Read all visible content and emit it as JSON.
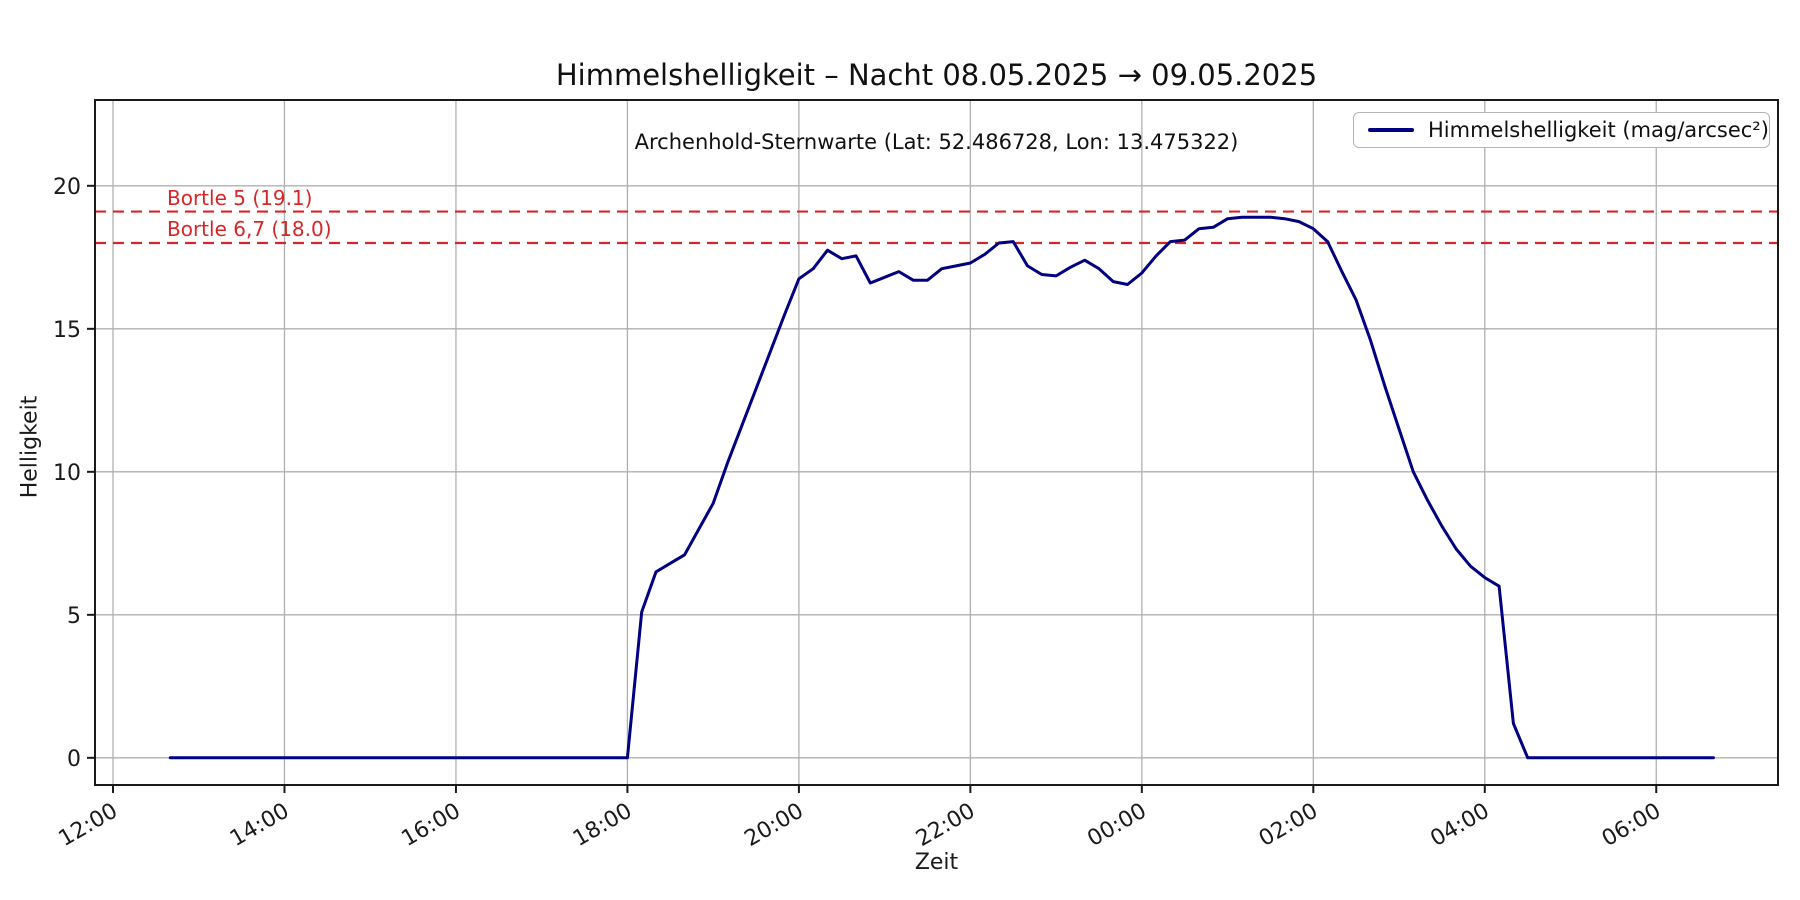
{
  "chart_data": {
    "type": "line",
    "title": "Himmelshelligkeit – Nacht 08.05.2025 → 09.05.2025",
    "subtitle": "Archenhold-Sternwarte (Lat: 52.486728, Lon: 13.475322)",
    "xlabel": "Zeit",
    "ylabel": "Helligkeit",
    "grid": true,
    "legend": {
      "label": "Himmelshelligkeit (mag/arcsec²)",
      "position": "upper right"
    },
    "colors": {
      "line": "#000080",
      "reference": "#d62728",
      "grid": "#b0b0b0",
      "spine": "#1a1a1a",
      "background": "#ffffff",
      "text": "#1a1a1a"
    },
    "y_ticks": [
      0,
      5,
      10,
      15,
      20
    ],
    "ylim": [
      -0.95,
      23.0
    ],
    "x_tick_labels": [
      "12:00",
      "14:00",
      "16:00",
      "18:00",
      "20:00",
      "22:00",
      "00:00",
      "02:00",
      "04:00",
      "06:00"
    ],
    "x_axis_hours_from_noon": {
      "ticks": [
        0,
        2,
        4,
        6,
        8,
        10,
        12,
        14,
        16,
        18
      ],
      "lim": [
        -0.21,
        19.42
      ]
    },
    "reference_lines": [
      {
        "label": "Bortle 5 (19.1)",
        "value": 19.1,
        "color": "#d62728",
        "style": "dashed"
      },
      {
        "label": "Bortle 6,7 (18.0)",
        "value": 18.0,
        "color": "#d62728",
        "style": "dashed"
      }
    ],
    "series": [
      {
        "name": "Himmelshelligkeit (mag/arcsec²)",
        "color": "#000080",
        "points": [
          [
            "12:40",
            0
          ],
          [
            "12:50",
            0
          ],
          [
            "13:00",
            0
          ],
          [
            "13:10",
            0
          ],
          [
            "13:20",
            0
          ],
          [
            "13:30",
            0
          ],
          [
            "13:40",
            0
          ],
          [
            "13:50",
            0
          ],
          [
            "14:00",
            0
          ],
          [
            "14:10",
            0
          ],
          [
            "14:20",
            0
          ],
          [
            "14:30",
            0
          ],
          [
            "14:40",
            0
          ],
          [
            "14:50",
            0
          ],
          [
            "15:00",
            0
          ],
          [
            "15:10",
            0
          ],
          [
            "15:20",
            0
          ],
          [
            "15:30",
            0
          ],
          [
            "15:40",
            0
          ],
          [
            "15:50",
            0
          ],
          [
            "16:00",
            0
          ],
          [
            "16:10",
            0
          ],
          [
            "16:20",
            0
          ],
          [
            "16:30",
            0
          ],
          [
            "16:40",
            0
          ],
          [
            "16:50",
            0
          ],
          [
            "17:00",
            0
          ],
          [
            "17:10",
            0
          ],
          [
            "17:20",
            0
          ],
          [
            "17:30",
            0
          ],
          [
            "17:40",
            0
          ],
          [
            "17:50",
            0
          ],
          [
            "18:00",
            0
          ],
          [
            "18:10",
            5.1
          ],
          [
            "18:20",
            6.5
          ],
          [
            "18:30",
            6.8
          ],
          [
            "18:40",
            7.1
          ],
          [
            "18:50",
            8.0
          ],
          [
            "19:00",
            8.9
          ],
          [
            "19:10",
            10.3
          ],
          [
            "19:20",
            11.6
          ],
          [
            "19:30",
            12.9
          ],
          [
            "19:40",
            14.2
          ],
          [
            "19:50",
            15.5
          ],
          [
            "20:00",
            16.75
          ],
          [
            "20:10",
            17.1
          ],
          [
            "20:20",
            17.75
          ],
          [
            "20:30",
            17.45
          ],
          [
            "20:40",
            17.55
          ],
          [
            "20:50",
            16.6
          ],
          [
            "21:00",
            16.8
          ],
          [
            "21:10",
            17.0
          ],
          [
            "21:20",
            16.7
          ],
          [
            "21:30",
            16.7
          ],
          [
            "21:40",
            17.1
          ],
          [
            "21:50",
            17.2
          ],
          [
            "22:00",
            17.3
          ],
          [
            "22:10",
            17.6
          ],
          [
            "22:20",
            18.0
          ],
          [
            "22:30",
            18.05
          ],
          [
            "22:40",
            17.2
          ],
          [
            "22:50",
            16.9
          ],
          [
            "23:00",
            16.85
          ],
          [
            "23:10",
            17.15
          ],
          [
            "23:20",
            17.4
          ],
          [
            "23:30",
            17.1
          ],
          [
            "23:40",
            16.65
          ],
          [
            "23:50",
            16.55
          ],
          [
            "00:00",
            16.95
          ],
          [
            "00:10",
            17.55
          ],
          [
            "00:20",
            18.05
          ],
          [
            "00:30",
            18.1
          ],
          [
            "00:40",
            18.5
          ],
          [
            "00:50",
            18.55
          ],
          [
            "01:00",
            18.85
          ],
          [
            "01:10",
            18.9
          ],
          [
            "01:20",
            18.9
          ],
          [
            "01:30",
            18.9
          ],
          [
            "01:40",
            18.85
          ],
          [
            "01:50",
            18.75
          ],
          [
            "02:00",
            18.5
          ],
          [
            "02:10",
            18.05
          ],
          [
            "02:20",
            17.0
          ],
          [
            "02:30",
            16.0
          ],
          [
            "02:40",
            14.6
          ],
          [
            "02:50",
            13.0
          ],
          [
            "03:00",
            11.5
          ],
          [
            "03:10",
            10.0
          ],
          [
            "03:20",
            9.0
          ],
          [
            "03:30",
            8.1
          ],
          [
            "03:40",
            7.3
          ],
          [
            "03:50",
            6.7
          ],
          [
            "04:00",
            6.3
          ],
          [
            "04:10",
            6.0
          ],
          [
            "04:20",
            1.2
          ],
          [
            "04:30",
            0
          ],
          [
            "04:40",
            0
          ],
          [
            "04:50",
            0
          ],
          [
            "05:00",
            0
          ],
          [
            "05:10",
            0
          ],
          [
            "05:20",
            0
          ],
          [
            "05:30",
            0
          ],
          [
            "05:40",
            0
          ],
          [
            "05:50",
            0
          ],
          [
            "06:00",
            0
          ],
          [
            "06:10",
            0
          ],
          [
            "06:20",
            0
          ],
          [
            "06:30",
            0
          ],
          [
            "06:40",
            0
          ]
        ]
      }
    ]
  }
}
